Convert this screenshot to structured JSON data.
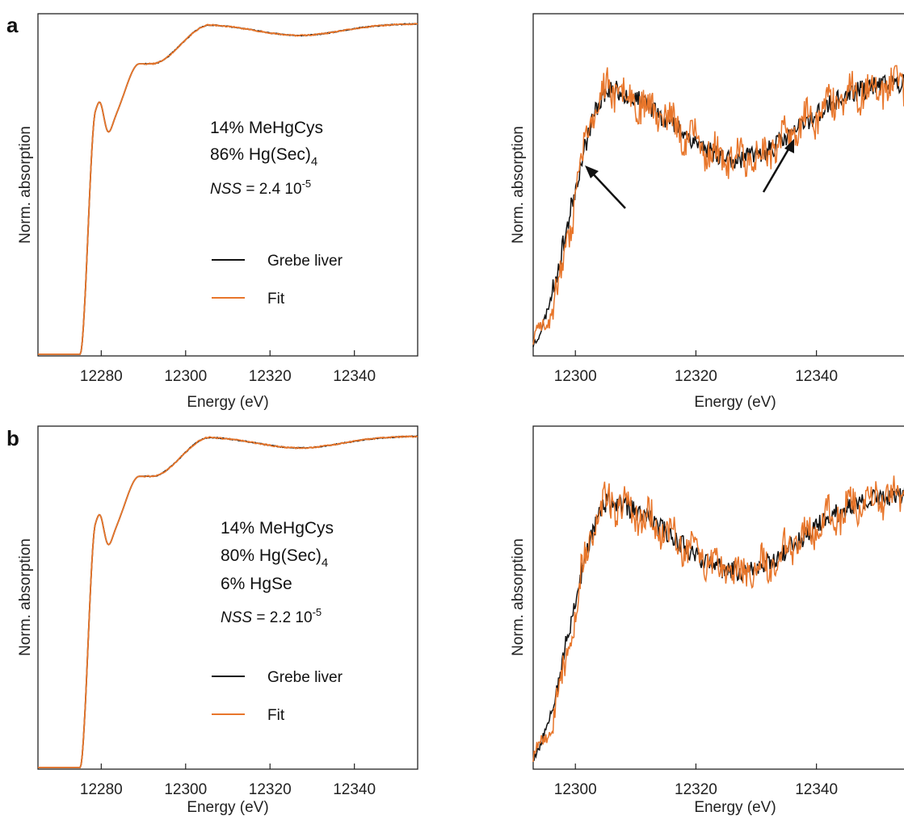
{
  "colors": {
    "sample": "#111111",
    "fit": "#e8762b",
    "axis": "#222222"
  },
  "chart_data": [
    {
      "panel": "a",
      "type": "line",
      "view": "full",
      "xlabel": "Energy (eV)",
      "ylabel": "Norm. absorption",
      "xlim": [
        12265,
        12355
      ],
      "xticks": [
        12280,
        12300,
        12320,
        12340
      ],
      "legend": [
        "Grebe liver",
        "Fit"
      ],
      "components": [
        "14% MeHgCys",
        "86% Hg(Sec)",
        "4"
      ],
      "nss": {
        "prefix": "NSS",
        "value": " = 2.4 10",
        "exponent": "-5"
      }
    },
    {
      "panel": "",
      "type": "line",
      "view": "zoom",
      "xlabel": "Energy (eV)",
      "ylabel": "Norm. absorption",
      "xlim": [
        12293,
        12356
      ],
      "xticks": [
        12300,
        12320,
        12340
      ],
      "arrows_at_x": [
        12300,
        12337
      ]
    },
    {
      "panel": "b",
      "type": "line",
      "view": "full",
      "xlabel": "Energy (eV)",
      "ylabel": "Norm. absorption",
      "xlim": [
        12265,
        12355
      ],
      "xticks": [
        12280,
        12300,
        12320,
        12340
      ],
      "legend": [
        "Grebe liver",
        "Fit"
      ],
      "components": [
        "14% MeHgCys",
        "80% Hg(Sec)",
        "4",
        "6% HgSe"
      ],
      "nss": {
        "prefix": "NSS",
        "value": " = 2.2 10",
        "exponent": "-5"
      }
    },
    {
      "panel": "",
      "type": "line",
      "view": "zoom",
      "xlabel": "Energy (eV)",
      "ylabel": "Norm. absorption",
      "xlim": [
        12293,
        12356
      ],
      "xticks": [
        12300,
        12320,
        12340
      ]
    }
  ]
}
